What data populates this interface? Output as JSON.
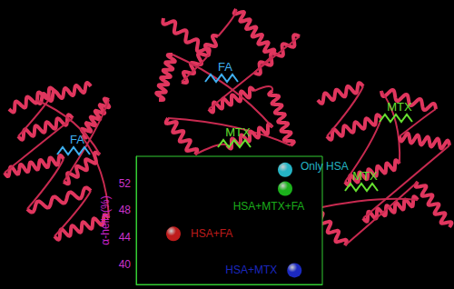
{
  "chart_data": {
    "type": "scatter",
    "y_label": "α-helix(%)",
    "xlim": [
      0,
      10
    ],
    "ylim": [
      37,
      56
    ],
    "yticks": [
      40,
      44,
      48,
      52
    ],
    "tick_labels": "y",
    "grid": false,
    "series": [
      {
        "name": "Only HSA",
        "color": "#2ee0f5",
        "x": [
          8.0
        ],
        "values": [
          54.0
        ]
      },
      {
        "name": "HSA+MTX+FA",
        "color": "#22dd22",
        "x": [
          8.0
        ],
        "values": [
          51.2
        ]
      },
      {
        "name": "HSA+FA",
        "color": "#ee2222",
        "x": [
          2.0
        ],
        "values": [
          44.5
        ]
      },
      {
        "name": "HSA+MTX",
        "color": "#2233ee",
        "x": [
          8.5
        ],
        "values": [
          39.1
        ]
      }
    ],
    "annotations": [
      {
        "text": "FA",
        "color": "#3fb0f0"
      },
      {
        "text": "FA",
        "color": "#3fb0f0"
      },
      {
        "text": "MTX",
        "color": "#66e030"
      },
      {
        "text": "MTX",
        "color": "#66e030"
      },
      {
        "text": "MTX",
        "color": "#66e030"
      }
    ]
  }
}
